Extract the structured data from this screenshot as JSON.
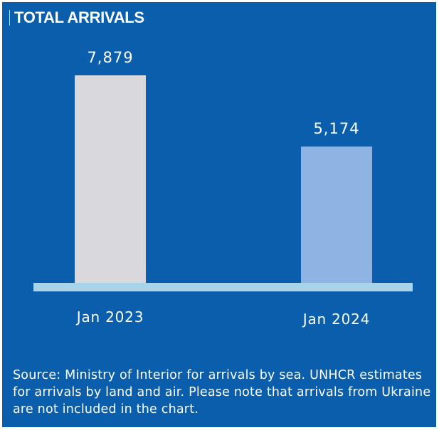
{
  "title": "TOTAL ARRIVALS",
  "colors": {
    "background": "#0a5eab",
    "bar_2023": "#d9d9dd",
    "bar_2024": "#8fb3e3",
    "baseline": "#a8d3e8",
    "text": "#ffffff"
  },
  "chart_data": {
    "type": "bar",
    "title": "TOTAL ARRIVALS",
    "categories": [
      "Jan 2023",
      "Jan 2024"
    ],
    "values": [
      7879,
      5174
    ],
    "value_labels": [
      "7,879",
      "5,174"
    ],
    "xlabel": "",
    "ylabel": "",
    "ylim": [
      0,
      7879
    ],
    "grid": false,
    "legend": "none"
  },
  "source_note": "Source: Ministry of Interior for arrivals by sea. UNHCR estimates for arrivals by land and air. Please note that arrivals from Ukraine are not included in the chart."
}
